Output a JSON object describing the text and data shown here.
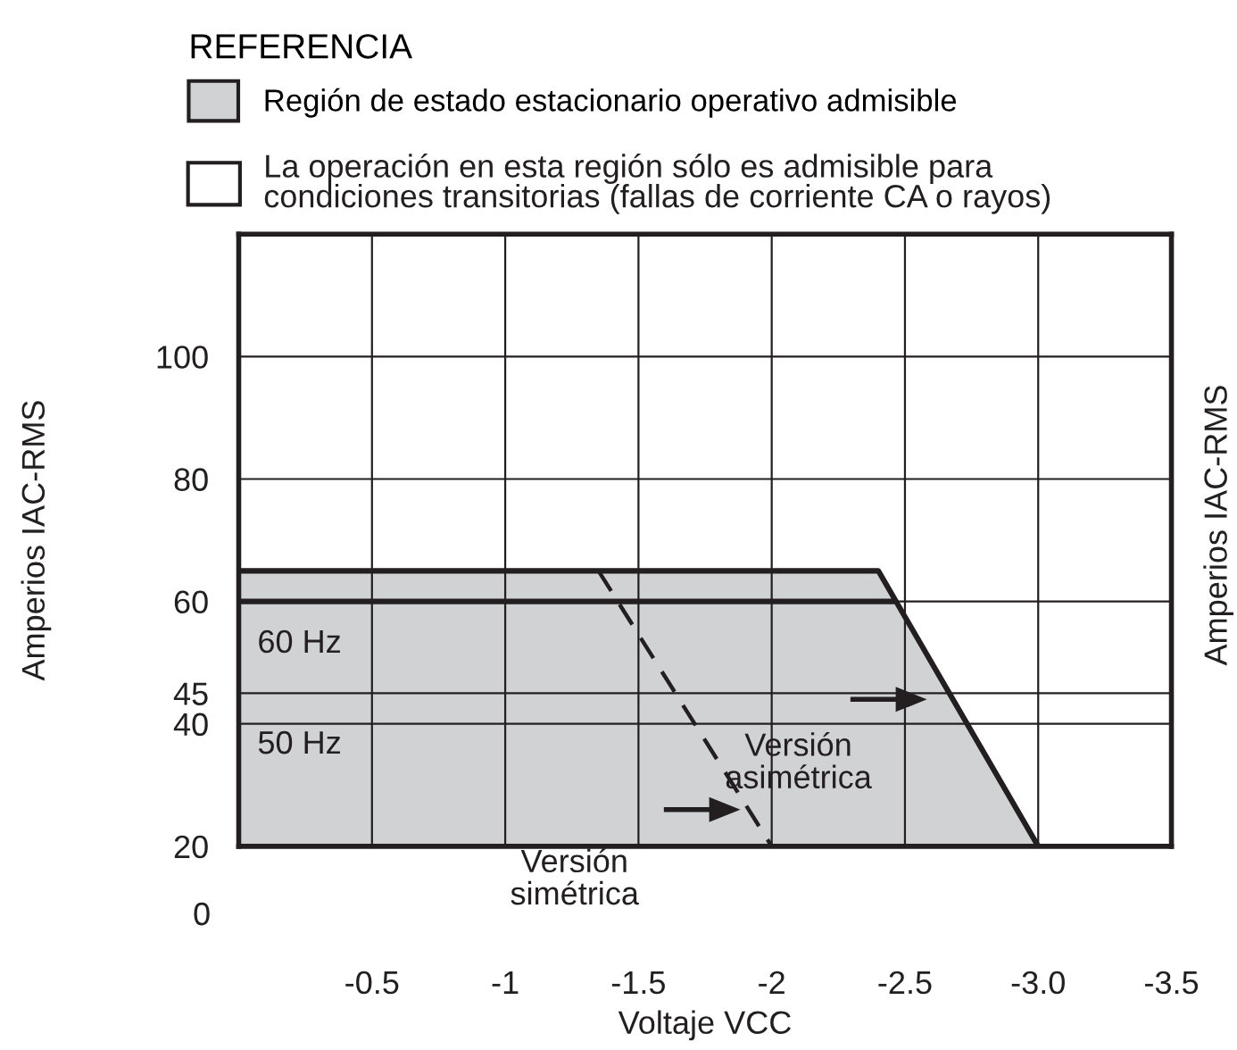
{
  "chart_data": {
    "type": "line",
    "xlabel": "Voltaje VCC",
    "ylabel": "Amperios IAC-RMS",
    "legend_title": "REFERENCIA",
    "xlim": [
      0,
      -3.5
    ],
    "ylim": [
      20,
      120
    ],
    "xticks": [
      -0.5,
      -1,
      -1.5,
      -2,
      -2.5,
      {
        "value": -3,
        "label": "-3.0"
      },
      -3.5
    ],
    "yticks": [
      20,
      40,
      45,
      60,
      80,
      100
    ],
    "grid": true,
    "legend": "top left",
    "marker": "none",
    "series": [
      {
        "type": "area",
        "name": "Región de estado estacionario operativo admisible",
        "color": "#d1d2d4",
        "x": [
          0,
          -2.4,
          -3.0
        ],
        "values": [
          65,
          65,
          20
        ]
      },
      {
        "color": "#231f20",
        "x": [
          0,
          -2.45
        ],
        "values": [
          60,
          60
        ],
        "line_style": "solid"
      },
      {
        "color": "#231f20",
        "x": [
          -1.35,
          -2.0
        ],
        "values": [
          65,
          20
        ],
        "line_style": "dashed"
      }
    ],
    "annotations": [
      "60 Hz",
      "50 Hz",
      "Versión\nasimétrica",
      "Versión\nsimétrica",
      "0",
      "La operación en esta región sólo es admisible para\ncondiciones transitorias (fallas de corriente CA o rayos)",
      "Amperios IAC-RMS"
    ]
  }
}
